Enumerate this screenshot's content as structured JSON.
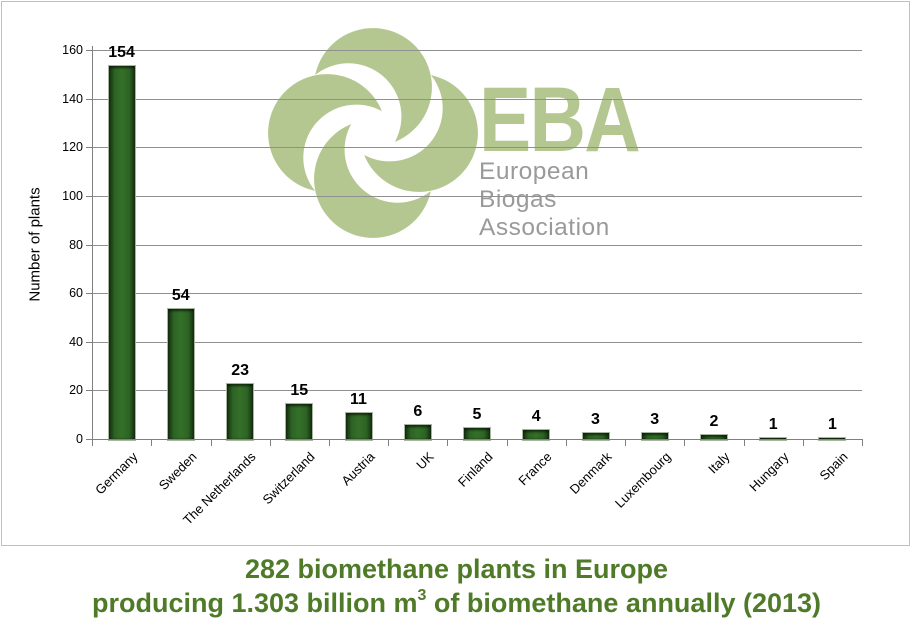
{
  "colors": {
    "logo_green": "#b4c791",
    "subtitle_gray": "#9a9a9a",
    "caption_green": "#4f7b29",
    "bar_green": "#2d6325",
    "grid_gray": "#909090",
    "axis_gray": "#808080",
    "frame_gray": "#c0c0c0",
    "label_black": "#000000"
  },
  "logo": {
    "flower_icon": "eba-four-petal-swirl",
    "name": "EBA",
    "subtitle": "European Biogas Association"
  },
  "caption": {
    "line1": "282 biomethane plants in Europe",
    "line2_prefix": "producing 1.303 billion m",
    "line2_sup": "3",
    "line2_suffix": " of biomethane annually (2013)"
  },
  "chart_data": {
    "type": "bar",
    "title": "",
    "categories": [
      "Germany",
      "Sweden",
      "The Netherlands",
      "Switzerland",
      "Austria",
      "UK",
      "Finland",
      "France",
      "Denmark",
      "Luxembourg",
      "Italy",
      "Hungary",
      "Spain"
    ],
    "values": [
      154,
      54,
      23,
      15,
      11,
      6,
      5,
      4,
      3,
      3,
      2,
      1,
      1
    ],
    "value_labels_shown": true,
    "xlabel": "",
    "ylabel": "Number of plants",
    "ylim": [
      0,
      160
    ],
    "ytick_interval": 20,
    "yticks": [
      0,
      20,
      40,
      60,
      80,
      100,
      120,
      140,
      160
    ],
    "grid": true,
    "legend": "none",
    "x_label_rotation_deg": -45
  }
}
